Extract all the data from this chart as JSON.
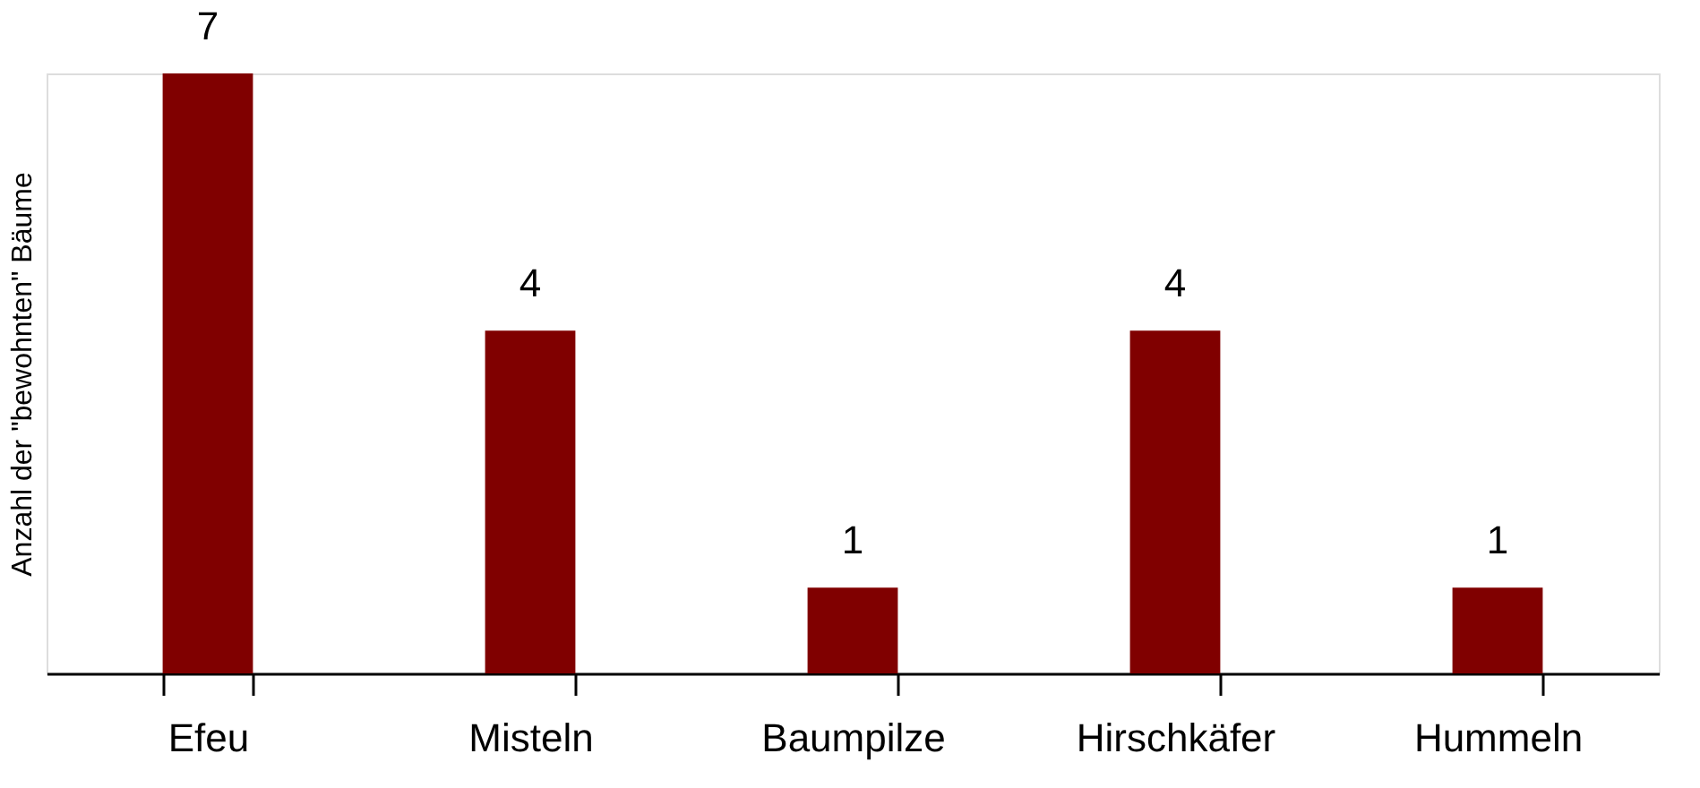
{
  "chart_data": {
    "type": "bar",
    "ylabel": "Anzahl der \"bewohnten\" Bäume",
    "categories": [
      "Efeu",
      "Misteln",
      "Baumpilze",
      "Hirschkäfer",
      "Hummeln"
    ],
    "values": [
      7,
      4,
      1,
      4,
      1
    ],
    "color": "#800000",
    "data_labels": true,
    "grid": false
  }
}
